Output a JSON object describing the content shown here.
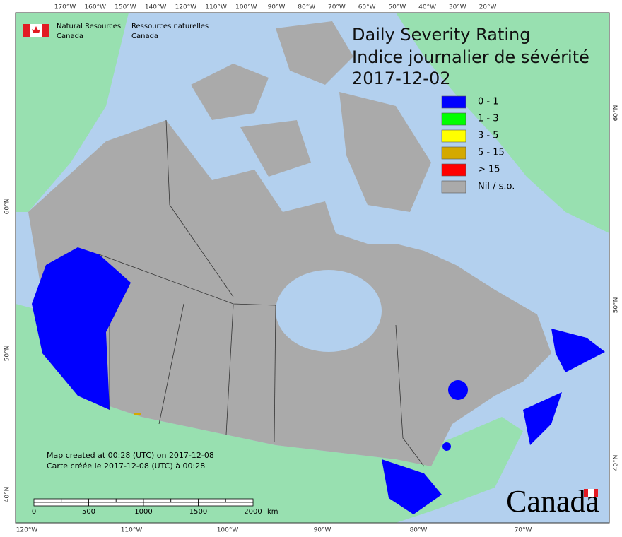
{
  "header": {
    "agency_en": [
      "Natural Resources",
      "Canada"
    ],
    "agency_fr": [
      "Ressources naturelles",
      "Canada"
    ]
  },
  "title": {
    "line1": "Daily Severity Rating",
    "line2": "Indice journalier de sévérité",
    "date": "2017-12-02"
  },
  "legend": {
    "items": [
      {
        "label": "0 - 1",
        "color": "#0000ff"
      },
      {
        "label": "1 - 3",
        "color": "#00ff00"
      },
      {
        "label": "3 - 5",
        "color": "#ffff00"
      },
      {
        "label": "5 - 15",
        "color": "#d4a900"
      },
      {
        "label": "> 15",
        "color": "#ff0000"
      },
      {
        "label": "Nil / s.o.",
        "color": "#aaaaaa"
      }
    ]
  },
  "notes": [
    "Map created at 00:28 (UTC) on 2017-12-08",
    "Carte créée le 2017-12-08 (UTC) à 00:28"
  ],
  "scale_bar": {
    "ticks": [
      0,
      500,
      1000,
      1500,
      2000
    ],
    "unit": "km"
  },
  "graticule": {
    "top": [
      "170°W",
      "160°W",
      "150°W",
      "140°W",
      "120°W",
      "110°W",
      "100°W",
      "90°W",
      "80°W",
      "70°W",
      "60°W",
      "50°W",
      "40°W",
      "30°W",
      "20°W"
    ],
    "bottom": [
      "120°W",
      "110°W",
      "100°W",
      "90°W",
      "80°W",
      "70°W"
    ],
    "left": [
      "60°N",
      "50°N",
      "40°N"
    ],
    "right": [
      "60°N",
      "50°N",
      "40°N"
    ]
  },
  "wordmark": "Canada"
}
